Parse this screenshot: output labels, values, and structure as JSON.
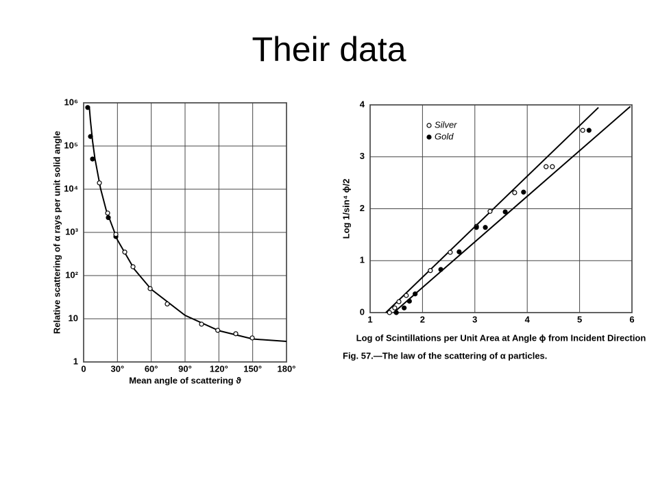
{
  "title": "Their data",
  "chart_data": [
    {
      "type": "scatter",
      "log_y": true,
      "grid": true,
      "x_label": "Mean angle of scattering ϑ",
      "y_label": "Relative scattering of α rays per unit solid angle",
      "xlim": [
        0,
        180
      ],
      "ylim": [
        1,
        1000000
      ],
      "xticks": [
        0,
        {
          "value": 30,
          "label": "30°"
        },
        {
          "value": 60,
          "label": "60°"
        },
        {
          "value": 90,
          "label": "90°"
        },
        {
          "value": 120,
          "label": "120°"
        },
        {
          "value": 150,
          "label": "150°"
        },
        {
          "value": 180,
          "label": "180°"
        }
      ],
      "yticks": [
        1,
        10,
        {
          "value": 100,
          "label": "10²"
        },
        {
          "value": 1000,
          "label": "10³"
        },
        {
          "value": 10000,
          "label": "10⁴"
        },
        {
          "value": 100000,
          "label": "10⁵"
        },
        {
          "value": 1000000,
          "label": "10⁶"
        }
      ],
      "series": [
        {
          "marker": "filled",
          "color": "#000000",
          "x": [
            3.6,
            6.1,
            7.9,
            21.9,
            28.6
          ],
          "values": [
            780000,
            166000,
            50000,
            2200,
            800
          ]
        },
        {
          "marker": "open",
          "color": "#000000",
          "x": [
            14,
            21.3,
            28.6,
            36.5,
            43.8,
            59,
            74.2,
            104.6,
            119,
            135,
            149.6
          ],
          "values": [
            14000,
            2800,
            900,
            350,
            160,
            50,
            22,
            7.5,
            5.4,
            4.5,
            3.6
          ]
        }
      ],
      "curves": [
        {
          "color": "#000000",
          "x": [
            5,
            6,
            8,
            10,
            15,
            20,
            30,
            45,
            60,
            90,
            120,
            150,
            180
          ],
          "values": [
            830000,
            400000,
            126000,
            52000,
            10400,
            3300,
            670,
            140,
            48,
            12,
            5.3,
            3.4,
            3
          ]
        }
      ]
    },
    {
      "type": "scatter",
      "grid": true,
      "legend": "upper left",
      "x_label": "Log of Scintillations per Unit Area at Angle ϕ from Incident Direction",
      "y_label": "Log 1/sin⁴ ϕ/2",
      "caption": "Fig. 57.—The law of the scattering of α particles.",
      "xlim": [
        1,
        6
      ],
      "ylim": [
        0,
        4
      ],
      "xticks": [
        1,
        2,
        3,
        4,
        5,
        6
      ],
      "yticks": [
        0,
        1,
        2,
        3,
        4
      ],
      "series": [
        {
          "name": "Silver",
          "marker": "open",
          "color": "#000000",
          "x": [
            1.37,
            1.47,
            1.55,
            1.69,
            2.15,
            2.53,
            3.03,
            3.29,
            3.76,
            4.36,
            4.48,
            5.06
          ],
          "values": [
            0,
            0.09,
            0.21,
            0.33,
            0.81,
            1.16,
            1.66,
            1.95,
            2.31,
            2.81,
            2.81,
            3.51
          ]
        },
        {
          "name": "Gold",
          "marker": "filled",
          "color": "#000000",
          "x": [
            1.5,
            1.65,
            1.75,
            1.86,
            2.35,
            2.7,
            3.03,
            3.2,
            3.58,
            3.93,
            5.18
          ],
          "values": [
            0,
            0.09,
            0.22,
            0.36,
            0.83,
            1.17,
            1.64,
            1.64,
            1.94,
            2.32,
            3.51
          ]
        }
      ],
      "curves": [
        {
          "color": "#000000",
          "x": [
            1.3,
            5.36
          ],
          "values": [
            0,
            3.95
          ]
        },
        {
          "color": "#000000",
          "x": [
            1.45,
            5.97
          ],
          "values": [
            0,
            3.97
          ]
        }
      ]
    }
  ]
}
